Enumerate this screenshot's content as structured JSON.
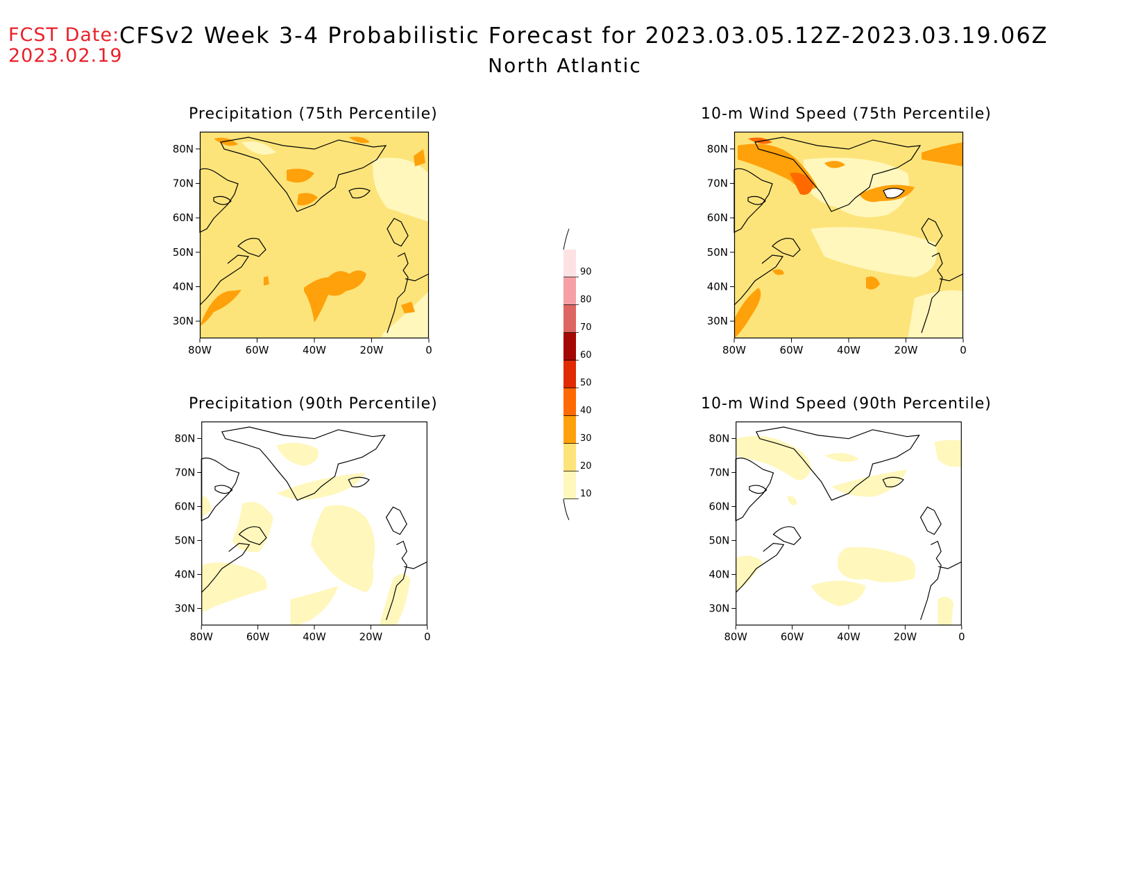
{
  "header": {
    "fcst_label": "FCST Date:",
    "fcst_date": "2023.02.19",
    "title": "CFSv2 Week 3-4 Probabilistic Forecast for 2023.03.05.12Z-2023.03.19.06Z",
    "region": "North Atlantic"
  },
  "panels": [
    {
      "title": "Precipitation (75th Percentile)"
    },
    {
      "title": "10-m Wind Speed (75th Percentile)"
    },
    {
      "title": "Precipitation (90th Percentile)"
    },
    {
      "title": "10-m Wind Speed (90th Percentile)"
    }
  ],
  "axes": {
    "lat_labels": [
      "80N",
      "70N",
      "60N",
      "50N",
      "40N",
      "30N"
    ],
    "lon_labels": [
      "80W",
      "60W",
      "40W",
      "20W",
      "0"
    ],
    "lat_range": [
      25,
      85
    ],
    "lon_range": [
      -80,
      0
    ]
  },
  "colorbar": {
    "levels": [
      "10",
      "20",
      "30",
      "40",
      "50",
      "60",
      "70",
      "80",
      "90"
    ],
    "colors": [
      "#fff7bc",
      "#fde47a",
      "#ffa10a",
      "#fe6a00",
      "#e02a02",
      "#a30804",
      "#de6662",
      "#f5a0a4",
      "#fde2e4"
    ]
  }
}
